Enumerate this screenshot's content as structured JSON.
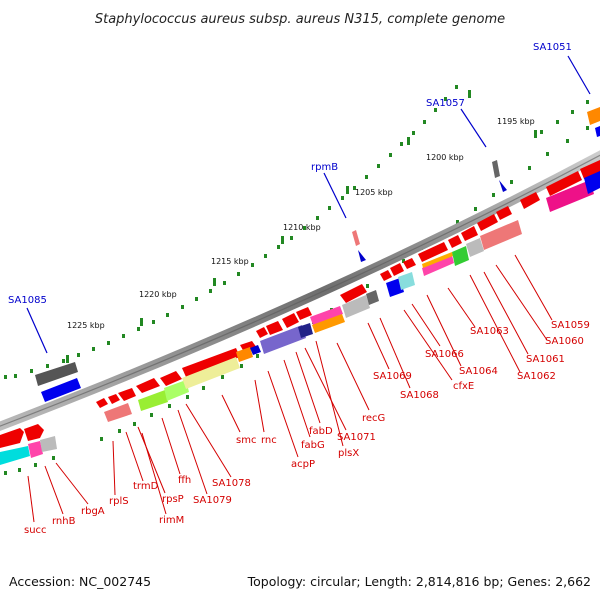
{
  "title": "Staphylococcus aureus subsp. aureus N315, complete genome",
  "footer": {
    "accession": "Accession: NC_002745",
    "summary": "Topology: circular; Length: 2,814,816 bp; Genes: 2,662"
  },
  "scale_labels": [
    "1195 kbp",
    "1200 kbp",
    "1205 kbp",
    "1210 kbp",
    "1215 kbp",
    "1220 kbp",
    "1225 kbp"
  ],
  "gene_labels_red": [
    "succ",
    "rnhB",
    "rbgA",
    "rplS",
    "trmD",
    "rpsP",
    "rimM",
    "ffh",
    "SA1079",
    "SA1078",
    "smc",
    "rnc",
    "acpP",
    "fabG",
    "fabD",
    "SA1071",
    "plsX",
    "recG",
    "SA1069",
    "SA1068",
    "cfxE",
    "SA1066",
    "SA1064",
    "SA1063",
    "SA1062",
    "SA1061",
    "SA1060",
    "SA1059"
  ],
  "gene_labels_blue": [
    "SA1051",
    "SA1057",
    "rpmB",
    "SA1085"
  ],
  "colors": {
    "gene_red": "#ee0000",
    "scale_dot": "#228822",
    "label_red": "#d40000",
    "label_blue": "#0000cc",
    "backbone": "#7a7a7a"
  }
}
